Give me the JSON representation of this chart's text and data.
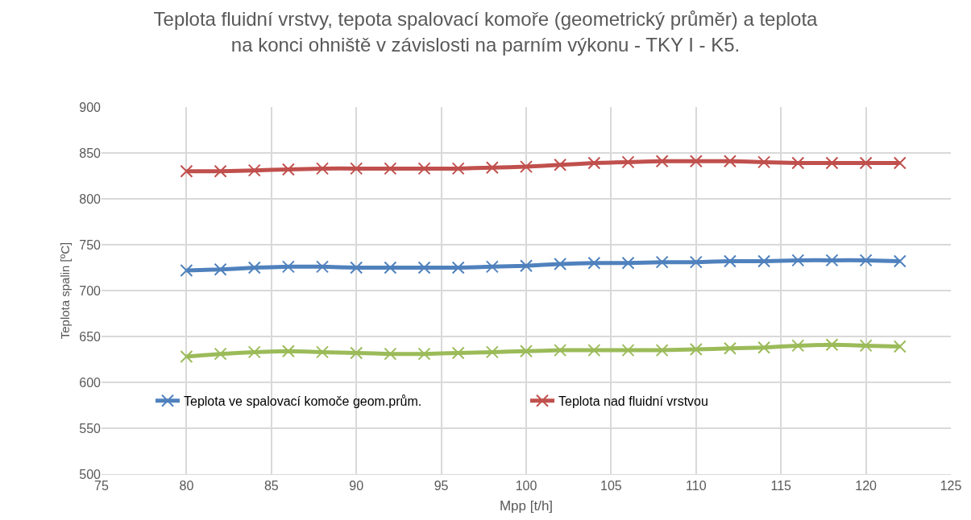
{
  "chart_data": {
    "type": "line",
    "title": "Teplota fluidní vrstvy, tepota spalovací komoře (geometrický průměr) a teplota\nna konci ohniště v závislosti na parním výkonu - TKY I - K5.",
    "xlabel": "Mpp [t/h]",
    "ylabel": "Teplota spalin [ºC]",
    "x": [
      80,
      82,
      84,
      86,
      88,
      90,
      92,
      94,
      96,
      98,
      100,
      102,
      104,
      106,
      108,
      110,
      112,
      114,
      116,
      118,
      120,
      122
    ],
    "series": [
      {
        "name": "Teplota ve spalovací komoče geom.prům.",
        "color": "#4f81bd",
        "values": [
          722,
          723,
          725,
          726,
          726,
          725,
          725,
          725,
          725,
          726,
          727,
          729,
          730,
          730,
          731,
          731,
          732,
          732,
          733,
          733,
          733,
          732
        ]
      },
      {
        "name": "Teplota nad fluidní vrstvou",
        "color": "#c0504d",
        "values": [
          830,
          830,
          831,
          832,
          833,
          833,
          833,
          833,
          833,
          834,
          835,
          837,
          839,
          840,
          841,
          841,
          841,
          840,
          839,
          839,
          839,
          839
        ]
      },
      {
        "color": "#9bbb59",
        "values": [
          628,
          631,
          633,
          634,
          633,
          632,
          631,
          631,
          632,
          633,
          634,
          635,
          635,
          635,
          635,
          636,
          637,
          638,
          640,
          641,
          640,
          639
        ]
      }
    ],
    "xlim": [
      75,
      125
    ],
    "xticks": [
      75,
      80,
      85,
      90,
      95,
      100,
      105,
      110,
      115,
      120,
      125
    ],
    "ylim": [
      500,
      900
    ],
    "yticks": [
      500,
      550,
      600,
      650,
      700,
      750,
      800,
      850,
      900
    ],
    "grid": true,
    "legend": "bottom",
    "marker": "cross",
    "line_style": "solid"
  }
}
